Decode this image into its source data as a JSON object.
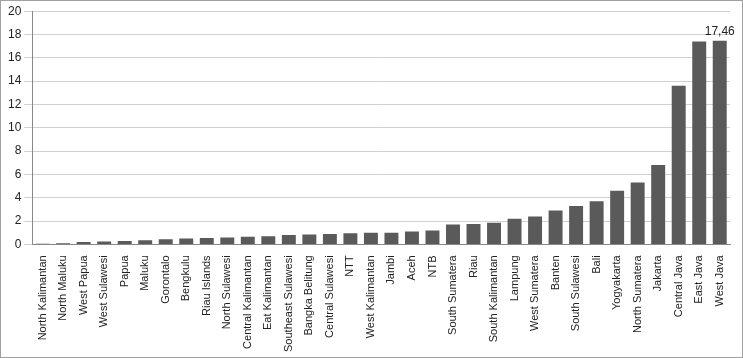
{
  "chart_data": {
    "type": "bar",
    "categories": [
      "North Kalimantan",
      "North Maluku",
      "West Papua",
      "West Sulawesi",
      "Papua",
      "Maluku",
      "Gorontalo",
      "Bengkulu",
      "Riau Islands",
      "North Sulawesi",
      "Central Kalimantan",
      "Eat Kalimantan",
      "Southeast Sulawesi",
      "Bangka Belitung",
      "Central Sulawesi",
      "NTT",
      "West Kalimantan",
      "Jambi",
      "Aceh",
      "NTB",
      "South Sumatera",
      "Riau",
      "South Kalimantan",
      "Lampung",
      "West Sumatera",
      "Banten",
      "South Sulawesi",
      "Bali",
      "Yogyakarta",
      "North Sumatera",
      "Jakarta",
      "Central Java",
      "East Java",
      "West Java"
    ],
    "values": [
      0.05,
      0.1,
      0.2,
      0.25,
      0.3,
      0.35,
      0.45,
      0.5,
      0.55,
      0.6,
      0.65,
      0.7,
      0.8,
      0.85,
      0.9,
      0.95,
      1.0,
      1.0,
      1.1,
      1.2,
      1.7,
      1.75,
      1.85,
      2.2,
      2.4,
      2.9,
      3.3,
      3.7,
      4.6,
      5.3,
      6.8,
      13.6,
      17.4,
      17.46
    ],
    "value_labels": [
      null,
      null,
      null,
      null,
      null,
      null,
      null,
      null,
      null,
      null,
      null,
      null,
      null,
      null,
      null,
      null,
      null,
      null,
      null,
      null,
      null,
      null,
      null,
      null,
      null,
      null,
      null,
      null,
      null,
      null,
      null,
      null,
      null,
      "17,46"
    ],
    "data_labels": true,
    "color": "#5a5a5a",
    "ylim": [
      0,
      20
    ],
    "yticks": [
      0,
      2,
      4,
      6,
      8,
      10,
      12,
      14,
      16,
      18,
      20
    ],
    "grid": true
  }
}
